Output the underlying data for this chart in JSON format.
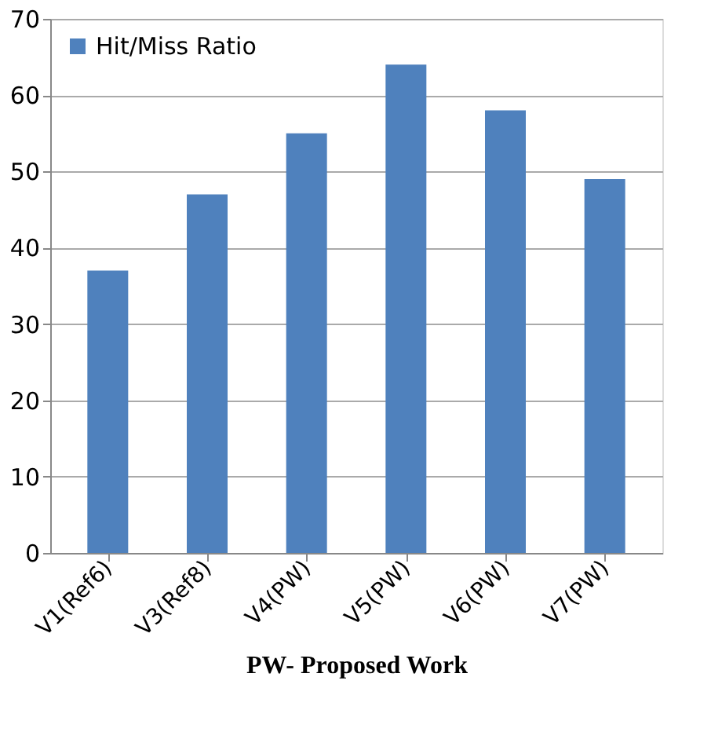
{
  "chart_data": {
    "type": "bar",
    "xlabel": "PW- Proposed Work",
    "categories": [
      "V1(Ref6)",
      "V3(Ref8)",
      "V4(PW)",
      "V5(PW)",
      "V6(PW)",
      "V7(PW)"
    ],
    "series": [
      {
        "name": "Hit/Miss Ratio",
        "color": "#4f81bd",
        "values": [
          37,
          47,
          55,
          64,
          58,
          49
        ]
      }
    ],
    "ylim": [
      0,
      70
    ],
    "yticks": [
      0,
      10,
      20,
      30,
      40,
      50,
      60,
      70
    ],
    "grid": "y",
    "legend": "top left"
  }
}
